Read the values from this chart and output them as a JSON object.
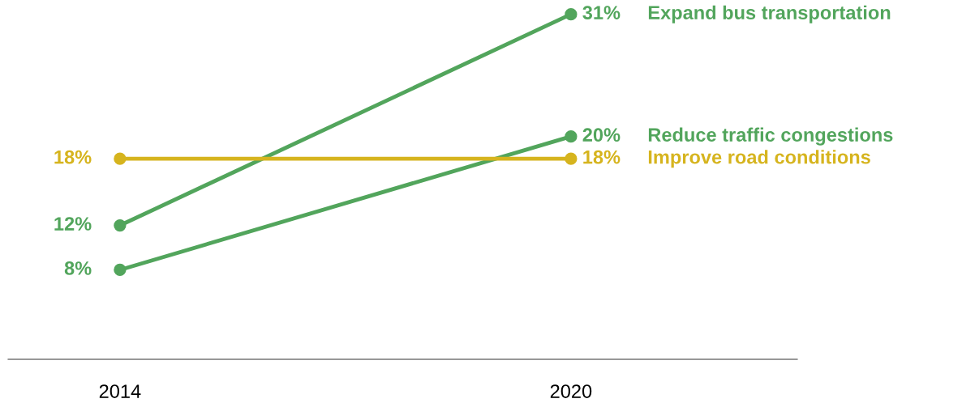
{
  "chart_data": {
    "type": "line",
    "categories": [
      "2014",
      "2020"
    ],
    "series": [
      {
        "name": "Expand bus transportation",
        "color": "#52a55c",
        "values": [
          12,
          31
        ],
        "value_labels": [
          "12%",
          "31%"
        ]
      },
      {
        "name": "Reduce traffic congestions",
        "color": "#52a55c",
        "values": [
          8,
          20
        ],
        "value_labels": [
          "8%",
          "20%"
        ]
      },
      {
        "name": "Improve road conditions",
        "color": "#d6b41e",
        "values": [
          18,
          18
        ],
        "value_labels": [
          "18%",
          "18%"
        ]
      }
    ],
    "marker": "circle",
    "line_style": "solid",
    "grid": false,
    "legend": false,
    "tick_labels": "x"
  }
}
